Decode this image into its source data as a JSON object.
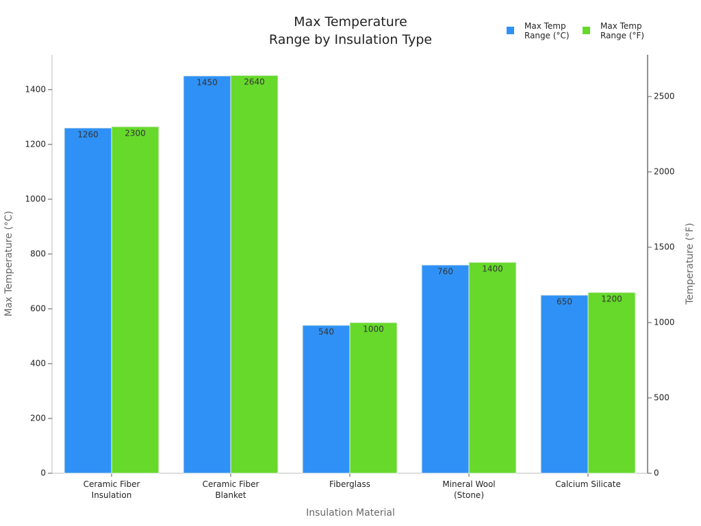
{
  "chart_data": {
    "type": "bar",
    "title": [
      "Max Temperature",
      "Range by Insulation Type"
    ],
    "x_label": "Insulation Material",
    "y_label": "Max Temperature (°C)",
    "y2_label": "Temperature (°F)",
    "categories": [
      "Ceramic Fiber Insulation",
      "Ceramic Fiber Blanket",
      "Fiberglass",
      "Mineral Wool (Stone)",
      "Calcium Silicate"
    ],
    "series": [
      {
        "name": "Max Temp Range (°C)",
        "color": "#2f91f5",
        "values": [
          1260,
          1450,
          540,
          760,
          650
        ]
      },
      {
        "name": "Max Temp Range (°F)",
        "color": "#66d92b",
        "axis": "y2",
        "values": [
          2300,
          2640,
          1000,
          1400,
          1200
        ]
      }
    ],
    "ylim": [
      0,
      1527
    ],
    "yticks": [
      0,
      200,
      400,
      600,
      800,
      1000,
      1200,
      1400
    ],
    "y2lim": [
      0,
      2777
    ],
    "y2ticks": [
      0,
      500,
      1000,
      1500,
      2000,
      2500
    ],
    "legend": "top-right"
  }
}
